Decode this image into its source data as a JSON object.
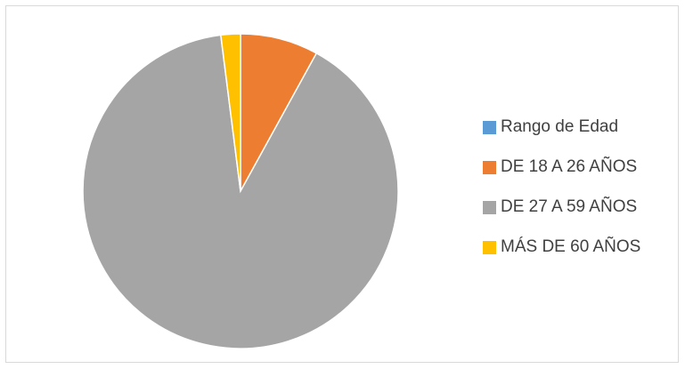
{
  "chart_data": {
    "type": "pie",
    "title": "",
    "categories": [
      "Rango de Edad",
      "DE 18 A 26 AÑOS",
      "DE 27 A 59 AÑOS",
      "MÁS DE 60 AÑOS"
    ],
    "values": [
      0,
      8,
      90,
      2
    ],
    "colors": [
      "#5b9bd5",
      "#ed7d31",
      "#a5a5a5",
      "#ffc000"
    ],
    "start_angle_deg": 0,
    "direction": "clockwise",
    "legend_position": "right"
  }
}
